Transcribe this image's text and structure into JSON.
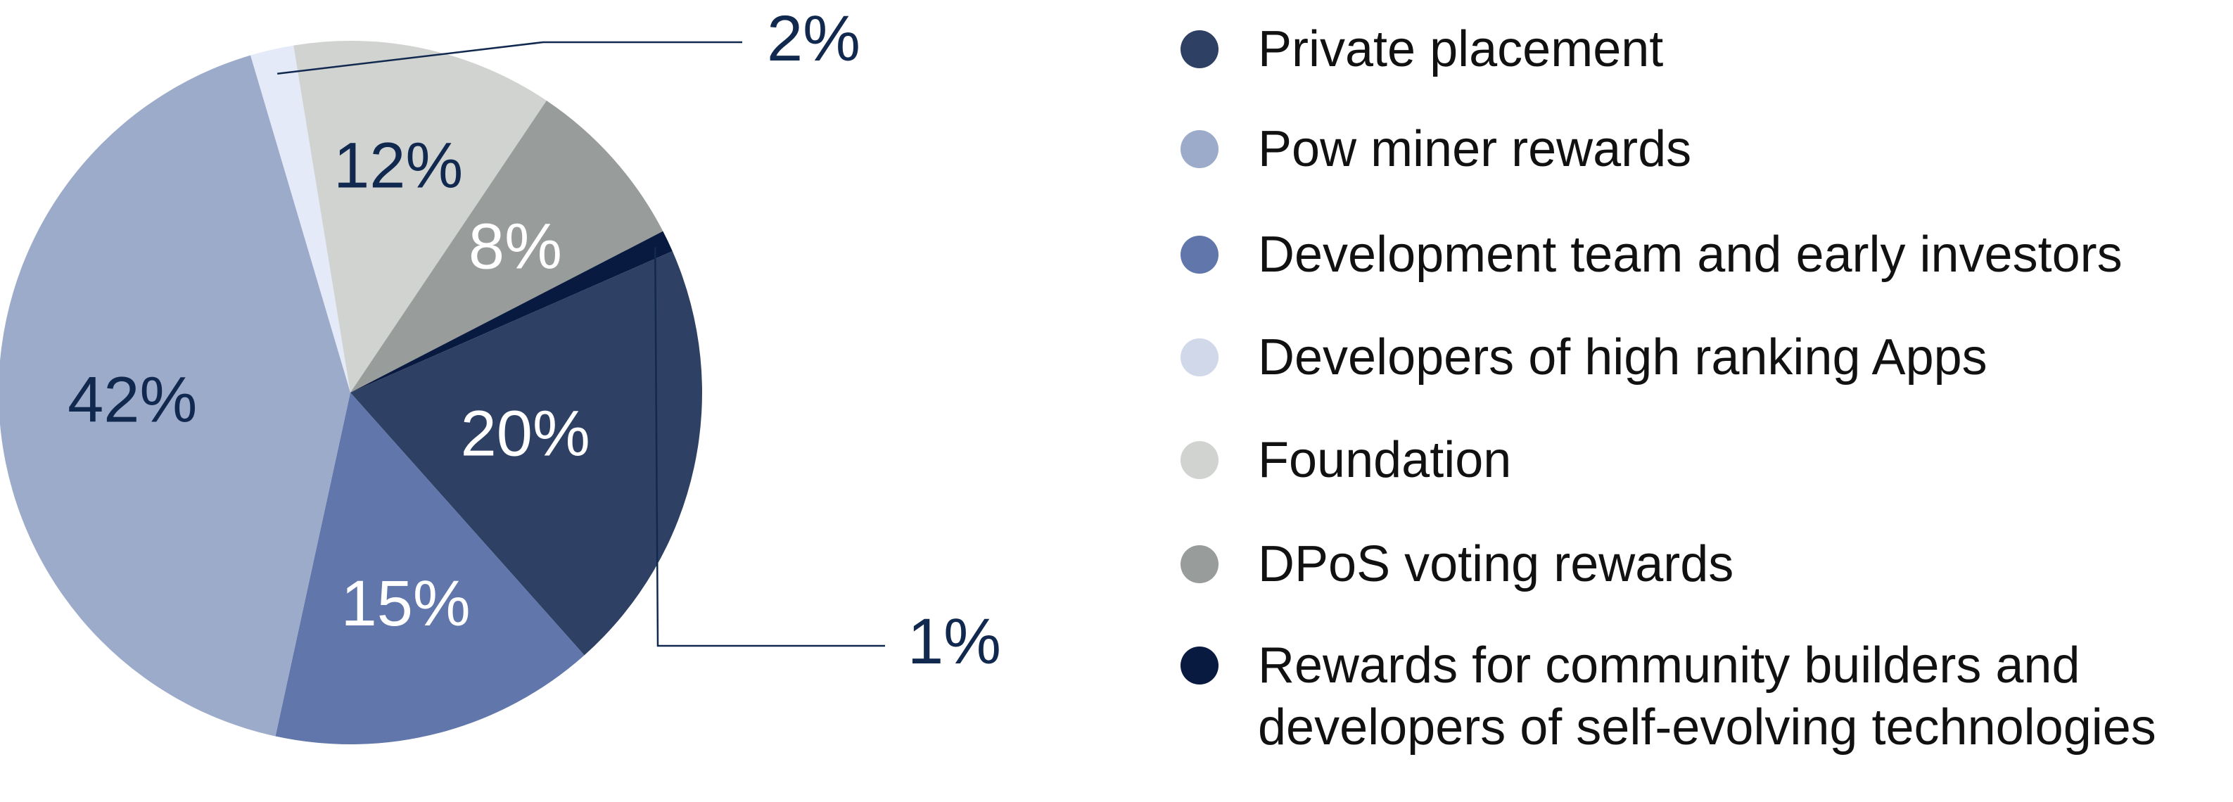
{
  "chart_data": {
    "type": "pie",
    "start_angle_deg": 106.5,
    "direction": "clockwise",
    "slices": [
      {
        "label": "Developers of high ranking Apps",
        "value": 2,
        "display": "2%",
        "color": "#e4eaf7",
        "label_color": "#12294f",
        "label_placement": "outside"
      },
      {
        "label": "Foundation",
        "value": 12,
        "display": "12%",
        "color": "#d1d3d1",
        "label_color": "#12294f",
        "label_placement": "inside"
      },
      {
        "label": "DPoS voting rewards",
        "value": 8,
        "display": "8%",
        "color": "#989c9b",
        "label_color": "#ffffff",
        "label_placement": "inside"
      },
      {
        "label": "Rewards for community builders and developers of self-evolving technologies",
        "value": 1,
        "display": "1%",
        "color": "#081a3f",
        "label_color": "#12294f",
        "label_placement": "outside"
      },
      {
        "label": "Private placement",
        "value": 20,
        "display": "20%",
        "color": "#2e4063",
        "label_color": "#ffffff",
        "label_placement": "inside"
      },
      {
        "label": "Development team and early investors",
        "value": 15,
        "display": "15%",
        "color": "#6176aa",
        "label_color": "#ffffff",
        "label_placement": "inside"
      },
      {
        "label": "Pow miner rewards",
        "value": 42,
        "display": "42%",
        "color": "#9cabca",
        "label_color": "#12294f",
        "label_placement": "inside"
      }
    ],
    "legend": {
      "placement": "right",
      "items": [
        {
          "lines": [
            "Private placement"
          ],
          "color": "#2e4063"
        },
        {
          "lines": [
            "Pow miner rewards"
          ],
          "color": "#9cabca"
        },
        {
          "lines": [
            "Development team and early investors"
          ],
          "color": "#6176aa"
        },
        {
          "lines": [
            "Developers of high ranking Apps"
          ],
          "color": "#d0d8ea"
        },
        {
          "lines": [
            "Foundation"
          ],
          "color": "#d1d3d1"
        },
        {
          "lines": [
            "DPoS voting rewards"
          ],
          "color": "#989c9b"
        },
        {
          "lines": [
            "Rewards for community builders and",
            "developers of self-evolving technologies"
          ],
          "color": "#081a3f"
        }
      ]
    },
    "leader_line_color": "#12294f"
  }
}
